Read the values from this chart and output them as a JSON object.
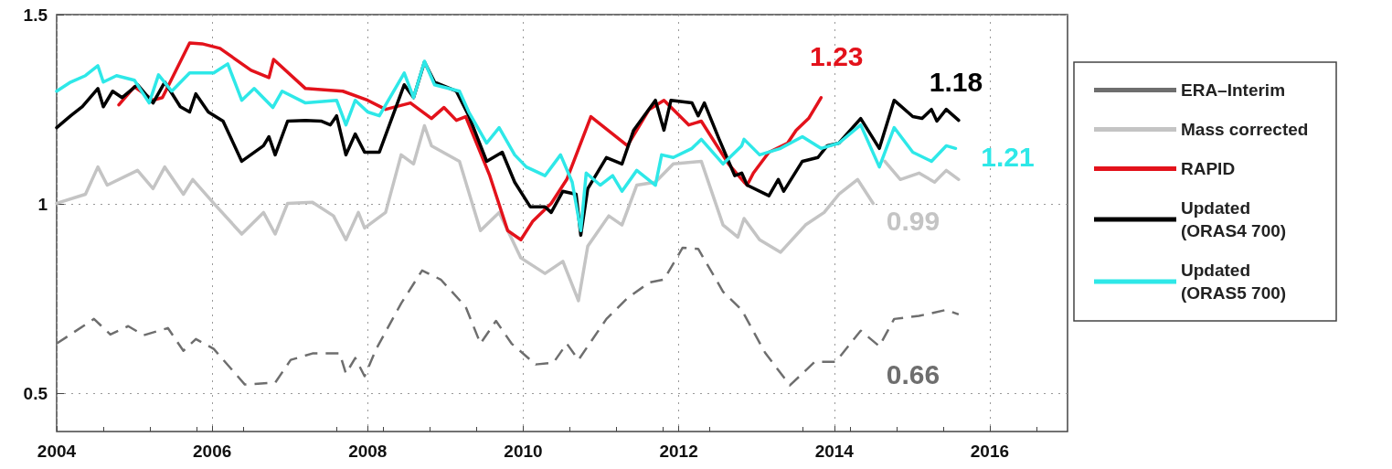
{
  "chart_data": {
    "type": "line",
    "xlim": [
      2004,
      2017
    ],
    "xticks": [
      2004,
      2006,
      2008,
      2010,
      2012,
      2014,
      2016
    ],
    "ylim": [
      0.4,
      1.5
    ],
    "yticks": [
      0.5,
      1,
      1.5
    ],
    "grid": true,
    "legend": "right",
    "marker": "none",
    "series": [
      {
        "name": "ERA–Interim",
        "color": "#6e6e6e",
        "line_style": "dashed",
        "x": [
          2004.0,
          2004.48,
          2004.69,
          2004.92,
          2005.12,
          2005.43,
          2005.63,
          2005.79,
          2006.02,
          2006.42,
          2006.81,
          2007.01,
          2007.29,
          2007.64,
          2007.72,
          2007.84,
          2007.96,
          2008.11,
          2008.43,
          2008.7,
          2008.94,
          2009.26,
          2009.45,
          2009.65,
          2009.85,
          2010.16,
          2010.39,
          2010.56,
          2010.71,
          2011.07,
          2011.34,
          2011.62,
          2011.81,
          2012.05,
          2012.25,
          2012.57,
          2012.81,
          2013.11,
          2013.43,
          2013.75,
          2014.02,
          2014.34,
          2014.58,
          2014.77,
          2015.09,
          2015.44,
          2015.6
        ],
        "values": [
          0.632,
          0.697,
          0.656,
          0.678,
          0.654,
          0.673,
          0.613,
          0.644,
          0.618,
          0.524,
          0.529,
          0.589,
          0.606,
          0.606,
          0.553,
          0.594,
          0.546,
          0.618,
          0.738,
          0.825,
          0.801,
          0.729,
          0.632,
          0.692,
          0.632,
          0.577,
          0.582,
          0.632,
          0.589,
          0.697,
          0.752,
          0.793,
          0.801,
          0.885,
          0.882,
          0.769,
          0.721,
          0.608,
          0.522,
          0.584,
          0.584,
          0.666,
          0.625,
          0.697,
          0.705,
          0.721,
          0.709
        ]
      },
      {
        "name": "Mass corrected",
        "color": "#c4c4c4",
        "x": [
          2004.0,
          2004.37,
          2004.53,
          2004.65,
          2005.04,
          2005.24,
          2005.39,
          2005.63,
          2005.75,
          2006.02,
          2006.38,
          2006.66,
          2006.81,
          2006.97,
          2007.29,
          2007.56,
          2007.72,
          2007.88,
          2007.96,
          2008.23,
          2008.43,
          2008.59,
          2008.73,
          2008.82,
          2009.18,
          2009.45,
          2009.69,
          2009.97,
          2010.28,
          2010.51,
          2010.71,
          2010.83,
          2011.1,
          2011.27,
          2011.46,
          2011.7,
          2011.93,
          2012.29,
          2012.57,
          2012.76,
          2012.84,
          2013.04,
          2013.31,
          2013.63,
          2013.87,
          2014.06,
          2014.3,
          2014.5,
          2014.57,
          2014.65,
          2014.85,
          2015.09,
          2015.29,
          2015.44,
          2015.6
        ],
        "values": [
          1.002,
          1.026,
          1.098,
          1.05,
          1.089,
          1.041,
          1.098,
          1.026,
          1.065,
          1.002,
          0.921,
          0.978,
          0.921,
          1.002,
          1.005,
          0.969,
          0.906,
          0.978,
          0.937,
          0.978,
          1.13,
          1.106,
          1.207,
          1.154,
          1.113,
          0.93,
          0.978,
          0.858,
          0.817,
          0.849,
          0.745,
          0.889,
          0.969,
          0.945,
          1.05,
          1.058,
          1.106,
          1.113,
          0.945,
          0.913,
          0.962,
          0.906,
          0.873,
          0.945,
          0.978,
          1.026,
          1.065,
          1.002,
          null,
          1.113,
          1.065,
          1.082,
          1.058,
          1.089,
          1.065
        ]
      },
      {
        "name": "RAPID",
        "color": "#e3121b",
        "x": [
          2004.8,
          2005.0,
          2005.24,
          2005.36,
          2005.71,
          2005.87,
          2006.1,
          2006.5,
          2006.73,
          2006.79,
          2007.2,
          2007.68,
          2008.0,
          2008.23,
          2008.55,
          2008.82,
          2008.98,
          2009.14,
          2009.26,
          2009.57,
          2009.8,
          2009.97,
          2010.12,
          2010.36,
          2010.56,
          2010.87,
          2011.34,
          2011.62,
          2011.81,
          2012.13,
          2012.29,
          2012.64,
          2012.84,
          2012.88,
          2012.96,
          2013.16,
          2013.4,
          2013.51,
          2013.67,
          2013.79,
          2013.83
        ],
        "values": [
          1.262,
          1.31,
          1.274,
          1.281,
          1.425,
          1.423,
          1.411,
          1.353,
          1.334,
          1.382,
          1.305,
          1.298,
          1.274,
          1.25,
          1.267,
          1.226,
          1.255,
          1.221,
          1.231,
          1.075,
          0.93,
          0.906,
          0.954,
          1.002,
          1.065,
          1.231,
          1.154,
          1.25,
          1.274,
          1.209,
          1.219,
          1.106,
          1.058,
          1.05,
          1.082,
          1.137,
          1.161,
          1.195,
          1.226,
          1.267,
          1.281
        ]
      },
      {
        "name": "Updated (ORAS4 700)",
        "color": "#000000",
        "x": [
          2004.0,
          2004.18,
          2004.33,
          2004.53,
          2004.6,
          2004.72,
          2004.84,
          2005.04,
          2005.24,
          2005.39,
          2005.59,
          2005.71,
          2005.79,
          2005.95,
          2006.14,
          2006.38,
          2006.66,
          2006.73,
          2006.81,
          2006.97,
          2007.2,
          2007.4,
          2007.52,
          2007.6,
          2007.72,
          2007.84,
          2007.96,
          2008.15,
          2008.47,
          2008.59,
          2008.73,
          2008.86,
          2009.14,
          2009.3,
          2009.53,
          2009.73,
          2009.89,
          2010.09,
          2010.28,
          2010.36,
          2010.51,
          2010.68,
          2010.74,
          2010.83,
          2011.07,
          2011.27,
          2011.42,
          2011.7,
          2011.81,
          2011.9,
          2012.17,
          2012.25,
          2012.33,
          2012.52,
          2012.72,
          2012.81,
          2012.88,
          2013.16,
          2013.28,
          2013.35,
          2013.59,
          2013.79,
          2013.91,
          2014.06,
          2014.34,
          2014.58,
          2014.77,
          2015.01,
          2015.13,
          2015.25,
          2015.32,
          2015.44,
          2015.6
        ],
        "values": [
          1.202,
          1.233,
          1.257,
          1.305,
          1.257,
          1.298,
          1.281,
          1.315,
          1.267,
          1.322,
          1.257,
          1.243,
          1.291,
          1.243,
          1.219,
          1.113,
          1.154,
          1.178,
          1.13,
          1.219,
          1.221,
          1.219,
          1.209,
          1.233,
          1.13,
          1.185,
          1.137,
          1.137,
          1.315,
          1.281,
          1.375,
          1.322,
          1.298,
          1.233,
          1.113,
          1.137,
          1.058,
          0.993,
          0.993,
          0.978,
          1.034,
          1.026,
          0.918,
          1.041,
          1.123,
          1.106,
          1.195,
          1.274,
          1.195,
          1.274,
          1.267,
          1.233,
          1.267,
          1.171,
          1.075,
          1.082,
          1.05,
          1.022,
          1.065,
          1.034,
          1.113,
          1.123,
          1.154,
          1.161,
          1.226,
          1.147,
          1.274,
          1.231,
          1.226,
          1.25,
          1.219,
          1.25,
          1.221
        ]
      },
      {
        "name": "Updated (ORAS5 700)",
        "color": "#2ee8e8",
        "x": [
          2004.0,
          2004.18,
          2004.37,
          2004.53,
          2004.6,
          2004.77,
          2005.0,
          2005.19,
          2005.31,
          2005.48,
          2005.71,
          2006.02,
          2006.2,
          2006.38,
          2006.54,
          2006.78,
          2006.9,
          2007.2,
          2007.6,
          2007.72,
          2007.84,
          2008.0,
          2008.15,
          2008.47,
          2008.59,
          2008.73,
          2008.86,
          2009.18,
          2009.3,
          2009.53,
          2009.69,
          2009.89,
          2010.04,
          2010.28,
          2010.48,
          2010.63,
          2010.74,
          2010.81,
          2010.99,
          2011.15,
          2011.27,
          2011.46,
          2011.7,
          2011.78,
          2011.93,
          2012.17,
          2012.29,
          2012.57,
          2012.81,
          2012.84,
          2013.04,
          2013.31,
          2013.59,
          2013.83,
          2014.06,
          2014.34,
          2014.58,
          2014.77,
          2015.01,
          2015.25,
          2015.44,
          2015.56
        ],
        "values": [
          1.298,
          1.322,
          1.339,
          1.365,
          1.322,
          1.339,
          1.327,
          1.267,
          1.341,
          1.298,
          1.346,
          1.346,
          1.37,
          1.274,
          1.305,
          1.255,
          1.298,
          1.267,
          1.274,
          1.209,
          1.274,
          1.243,
          1.233,
          1.346,
          1.281,
          1.377,
          1.315,
          1.298,
          1.243,
          1.161,
          1.202,
          1.13,
          1.098,
          1.075,
          1.13,
          1.058,
          0.93,
          1.082,
          1.05,
          1.075,
          1.034,
          1.089,
          1.05,
          1.13,
          1.123,
          1.147,
          1.171,
          1.106,
          1.154,
          1.171,
          1.13,
          1.147,
          1.178,
          1.147,
          1.161,
          1.209,
          1.098,
          1.202,
          1.137,
          1.113,
          1.154,
          1.147
        ]
      }
    ],
    "annotations": [
      "0.66",
      "0.99",
      "1.23",
      "1.18",
      "1.21"
    ]
  }
}
